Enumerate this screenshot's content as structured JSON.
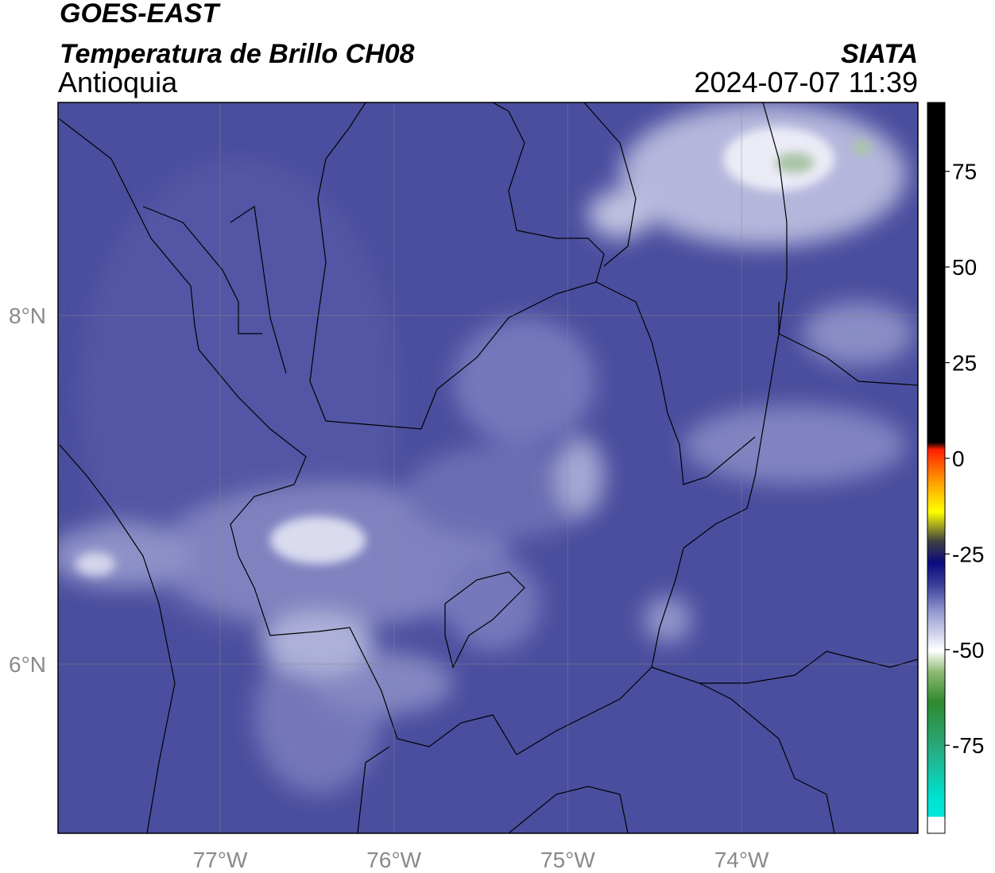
{
  "header": {
    "title": "GOES-EAST",
    "subtitle": "Temperatura de Brillo CH08",
    "region": "Antioquia",
    "source": "SIATA",
    "timestamp": "2024-07-07 11:39"
  },
  "map": {
    "grid": true,
    "lat_ticks": [
      {
        "value": 8,
        "label": "8°N"
      },
      {
        "value": 6,
        "label": "6°N"
      }
    ],
    "lon_ticks": [
      {
        "value": -77,
        "label": "77°W"
      },
      {
        "value": -76,
        "label": "76°W"
      },
      {
        "value": -75,
        "label": "75°W"
      },
      {
        "value": -74,
        "label": "74°W"
      }
    ]
  },
  "colorbar": {
    "lim": [
      -98,
      93
    ],
    "ticks": [
      75,
      50,
      25,
      0,
      -25,
      -50,
      -75
    ]
  }
}
